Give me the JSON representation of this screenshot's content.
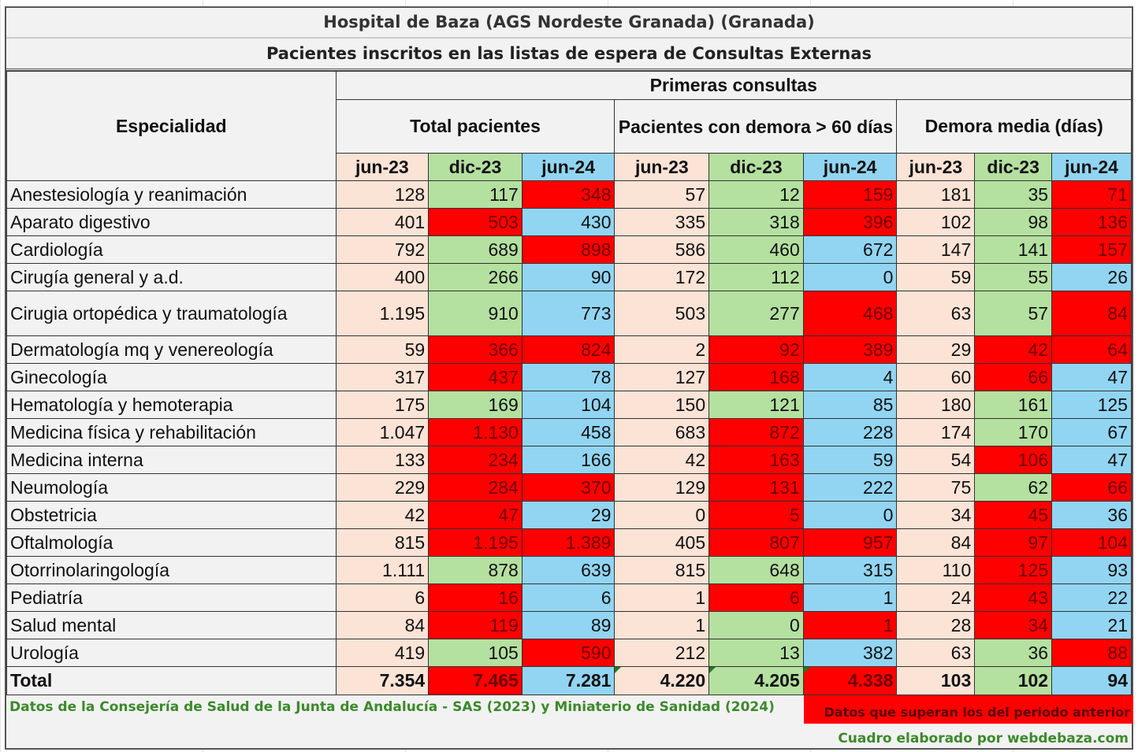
{
  "title": "Hospital de Baza (AGS Nordeste Granada) (Granada)",
  "subtitle": "Pacientes inscritos en las listas de espera de Consultas Externas",
  "header": {
    "specialty": "Especialidad",
    "section": "Primeras consultas",
    "groups": [
      "Total pacientes",
      "Pacientes con demora > 60 días",
      "Demora media (días)"
    ],
    "periods": [
      "jun-23",
      "dic-23",
      "jun-24"
    ]
  },
  "colors": {
    "jun23": "#fbe3d6",
    "dic23": "#b4e0a0",
    "jun24": "#91d5f2",
    "exceeds": "#ff0000"
  },
  "rows": [
    {
      "name": "Anestesiología y reanimación",
      "values": [
        "128",
        "117",
        "348",
        "57",
        "12",
        "159",
        "181",
        "35",
        "71"
      ],
      "red": [
        false,
        false,
        true,
        false,
        false,
        true,
        false,
        false,
        true
      ]
    },
    {
      "name": "Aparato digestivo",
      "values": [
        "401",
        "503",
        "430",
        "335",
        "318",
        "396",
        "102",
        "98",
        "136"
      ],
      "red": [
        false,
        true,
        false,
        false,
        false,
        true,
        false,
        false,
        true
      ]
    },
    {
      "name": "Cardiología",
      "values": [
        "792",
        "689",
        "898",
        "586",
        "460",
        "672",
        "147",
        "141",
        "157"
      ],
      "red": [
        false,
        false,
        true,
        false,
        false,
        false,
        false,
        false,
        true
      ]
    },
    {
      "name": "Cirugía general y a.d.",
      "values": [
        "400",
        "266",
        "90",
        "172",
        "112",
        "0",
        "59",
        "55",
        "26"
      ],
      "red": [
        false,
        false,
        false,
        false,
        false,
        false,
        false,
        false,
        false
      ]
    },
    {
      "name": "Cirugia ortopédica y traumatología",
      "values": [
        "1.195",
        "910",
        "773",
        "503",
        "277",
        "468",
        "63",
        "57",
        "84"
      ],
      "red": [
        false,
        false,
        false,
        false,
        false,
        true,
        false,
        false,
        true
      ]
    },
    {
      "name": "Dermatología mq y venereología",
      "values": [
        "59",
        "366",
        "824",
        "2",
        "92",
        "389",
        "29",
        "42",
        "64"
      ],
      "red": [
        false,
        true,
        true,
        false,
        true,
        true,
        false,
        true,
        true
      ]
    },
    {
      "name": "Ginecología",
      "values": [
        "317",
        "437",
        "78",
        "127",
        "168",
        "4",
        "60",
        "66",
        "47"
      ],
      "red": [
        false,
        true,
        false,
        false,
        true,
        false,
        false,
        true,
        false
      ]
    },
    {
      "name": "Hematología y hemoterapia",
      "values": [
        "175",
        "169",
        "104",
        "150",
        "121",
        "85",
        "180",
        "161",
        "125"
      ],
      "red": [
        false,
        false,
        false,
        false,
        false,
        false,
        false,
        false,
        false
      ]
    },
    {
      "name": "Medicina física y rehabilitación",
      "values": [
        "1.047",
        "1.130",
        "458",
        "683",
        "872",
        "228",
        "174",
        "170",
        "67"
      ],
      "red": [
        false,
        true,
        false,
        false,
        true,
        false,
        false,
        false,
        false
      ]
    },
    {
      "name": "Medicina interna",
      "values": [
        "133",
        "234",
        "166",
        "42",
        "163",
        "59",
        "54",
        "106",
        "47"
      ],
      "red": [
        false,
        true,
        false,
        false,
        true,
        false,
        false,
        true,
        false
      ]
    },
    {
      "name": "Neumología",
      "values": [
        "229",
        "284",
        "370",
        "129",
        "131",
        "222",
        "75",
        "62",
        "66"
      ],
      "red": [
        false,
        true,
        true,
        false,
        true,
        false,
        false,
        false,
        true
      ]
    },
    {
      "name": "Obstetricia",
      "values": [
        "42",
        "47",
        "29",
        "0",
        "5",
        "0",
        "34",
        "45",
        "36"
      ],
      "red": [
        false,
        true,
        false,
        false,
        true,
        false,
        false,
        true,
        false
      ]
    },
    {
      "name": "Oftalmología",
      "values": [
        "815",
        "1.195",
        "1.389",
        "405",
        "807",
        "957",
        "84",
        "97",
        "104"
      ],
      "red": [
        false,
        true,
        true,
        false,
        true,
        true,
        false,
        true,
        true
      ]
    },
    {
      "name": "Otorrinolaringología",
      "values": [
        "1.111",
        "878",
        "639",
        "815",
        "648",
        "315",
        "110",
        "125",
        "93"
      ],
      "red": [
        false,
        false,
        false,
        false,
        false,
        false,
        false,
        true,
        false
      ]
    },
    {
      "name": "Pediatría",
      "values": [
        "6",
        "16",
        "6",
        "1",
        "6",
        "1",
        "24",
        "43",
        "22"
      ],
      "red": [
        false,
        true,
        false,
        false,
        true,
        false,
        false,
        true,
        false
      ]
    },
    {
      "name": "Salud mental",
      "values": [
        "84",
        "119",
        "89",
        "1",
        "0",
        "1",
        "28",
        "34",
        "21"
      ],
      "red": [
        false,
        true,
        false,
        false,
        false,
        true,
        false,
        true,
        false
      ]
    },
    {
      "name": "Urología",
      "values": [
        "419",
        "105",
        "590",
        "212",
        "13",
        "382",
        "63",
        "36",
        "88"
      ],
      "red": [
        false,
        false,
        true,
        false,
        false,
        false,
        false,
        false,
        true
      ]
    }
  ],
  "total": {
    "name": "Total",
    "values": [
      "7.354",
      "7.465",
      "7.281",
      "4.220",
      "4.205",
      "4.338",
      "103",
      "102",
      "94"
    ],
    "red": [
      false,
      true,
      false,
      false,
      false,
      true,
      false,
      false,
      false
    ]
  },
  "footer": {
    "source": "Datos de la Consejería de Salud de  la Junta de Andalucía - SAS (2023) y Miniaterio de Sanidad (2024)",
    "legend": "Datos que superan los del periodo anterior",
    "credit": "Cuadro elaborado por webdebaza.com"
  }
}
